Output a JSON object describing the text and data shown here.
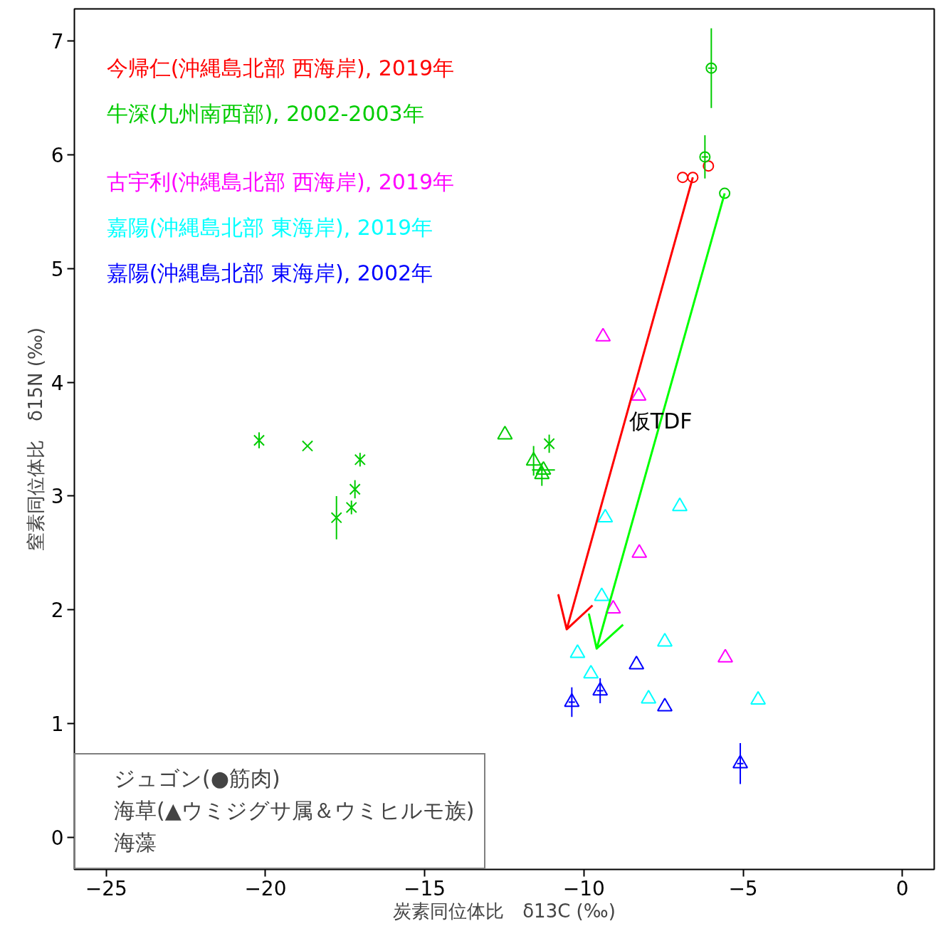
{
  "chart_data": {
    "type": "scatter",
    "xlabel": "炭素同位体比　δ13C (‰)",
    "ylabel": "窒素同位体比　δ15N (‰)",
    "xlim": [
      -26,
      1
    ],
    "ylim": [
      -0.28,
      7.28
    ],
    "xticks": [
      -25,
      -20,
      -15,
      -10,
      -5,
      0
    ],
    "yticks": [
      0,
      1,
      2,
      3,
      4,
      5,
      6,
      7
    ],
    "grid": false,
    "legend": "top left",
    "annotations": [
      "ジュゴン(●筋肉)",
      "海草(▲ウミジグサ属＆ウミヒルモ族)",
      "海藻",
      {
        "text": "仮TDF",
        "x": -7.59,
        "y": 3.66
      }
    ],
    "series": [
      {
        "name": "今帰仁(沖縄島北部 西海岸), 2019年",
        "color": "#ff0000",
        "marker": "circle",
        "x": [
          -6.9,
          -6.58,
          -6.09
        ],
        "values": [
          5.8,
          5.8,
          5.9
        ]
      },
      {
        "name": "牛深(九州南西部), 2002-2003年",
        "color": "#00cc00",
        "marker": "circle",
        "x": [
          -6.0,
          -6.2
        ],
        "values": [
          6.76,
          5.98
        ],
        "errors": [
          0.35,
          0.19
        ],
        "xerrors": [
          0.1,
          0.1
        ]
      },
      {
        "color": "#00cc00",
        "marker": "circle",
        "x": [
          -5.58
        ],
        "values": [
          5.66
        ]
      },
      {
        "color": "#00cc00",
        "marker": "triangle",
        "x": [
          -12.48
        ],
        "values": [
          3.54
        ]
      },
      {
        "color": "#00cc00",
        "marker": "triangle",
        "x": [
          -11.58,
          -11.27,
          -11.32
        ],
        "values": [
          3.31,
          3.23,
          3.19
        ],
        "errors": [
          0.13,
          null,
          0.1
        ],
        "xerrors": [
          null,
          0.36,
          null
        ]
      },
      {
        "color": "#00cc00",
        "marker": "cross",
        "x": [
          -20.2,
          -18.68,
          -17.03,
          -17.19,
          -17.3,
          -17.77,
          -11.09
        ],
        "values": [
          3.49,
          3.44,
          3.32,
          3.06,
          2.9,
          2.81,
          3.46
        ],
        "errors": [
          0.07,
          null,
          0.06,
          0.08,
          0.06,
          0.19,
          0.08
        ]
      },
      {
        "name": "古宇利(沖縄島北部 西海岸), 2019年",
        "color": "#ff00ff",
        "marker": "triangle",
        "x": [
          -9.4,
          -8.28,
          -9.08
        ],
        "values": [
          4.4,
          3.88,
          2.01
        ]
      },
      {
        "color": "#ff00ff",
        "marker": "triangle",
        "x": [
          -8.26,
          -5.56
        ],
        "values": [
          2.5,
          1.58
        ]
      },
      {
        "name": "嘉陽(沖縄島北部 東海岸), 2019年",
        "color": "#00ffff",
        "marker": "triangle",
        "x": [
          -9.33,
          -6.99,
          -10.2,
          -4.53
        ],
        "values": [
          2.81,
          2.91,
          1.62,
          1.21
        ]
      },
      {
        "color": "#00ffff",
        "marker": "triangle",
        "x": [
          -9.44,
          -7.46,
          -9.78,
          -7.97
        ],
        "values": [
          2.12,
          1.72,
          1.44,
          1.22
        ]
      },
      {
        "name": "嘉陽(沖縄島北部 東海岸), 2002年",
        "color": "#0000ff",
        "marker": "triangle",
        "x": [
          -8.35,
          -7.46
        ],
        "values": [
          1.52,
          1.15
        ]
      },
      {
        "color": "#0000ff",
        "marker": "triangle",
        "x": [
          -10.38,
          -9.49,
          -5.09
        ],
        "values": [
          1.19,
          1.29,
          0.65
        ],
        "errors": [
          0.13,
          0.11,
          0.18
        ],
        "xerrors": [
          0.1,
          0.1,
          0.1
        ]
      },
      {
        "type": "line",
        "color": "#ff0000",
        "x": [
          -6.58,
          -10.54,
          -10.8,
          -10.54,
          -9.73
        ],
        "values": [
          5.8,
          1.83,
          2.13,
          1.83,
          2.04
        ]
      },
      {
        "type": "line",
        "color": "#00ff00",
        "x": [
          -5.58,
          -9.6,
          -9.84,
          -9.6,
          -8.77
        ],
        "values": [
          5.66,
          1.66,
          1.96,
          1.66,
          1.87
        ]
      }
    ]
  }
}
